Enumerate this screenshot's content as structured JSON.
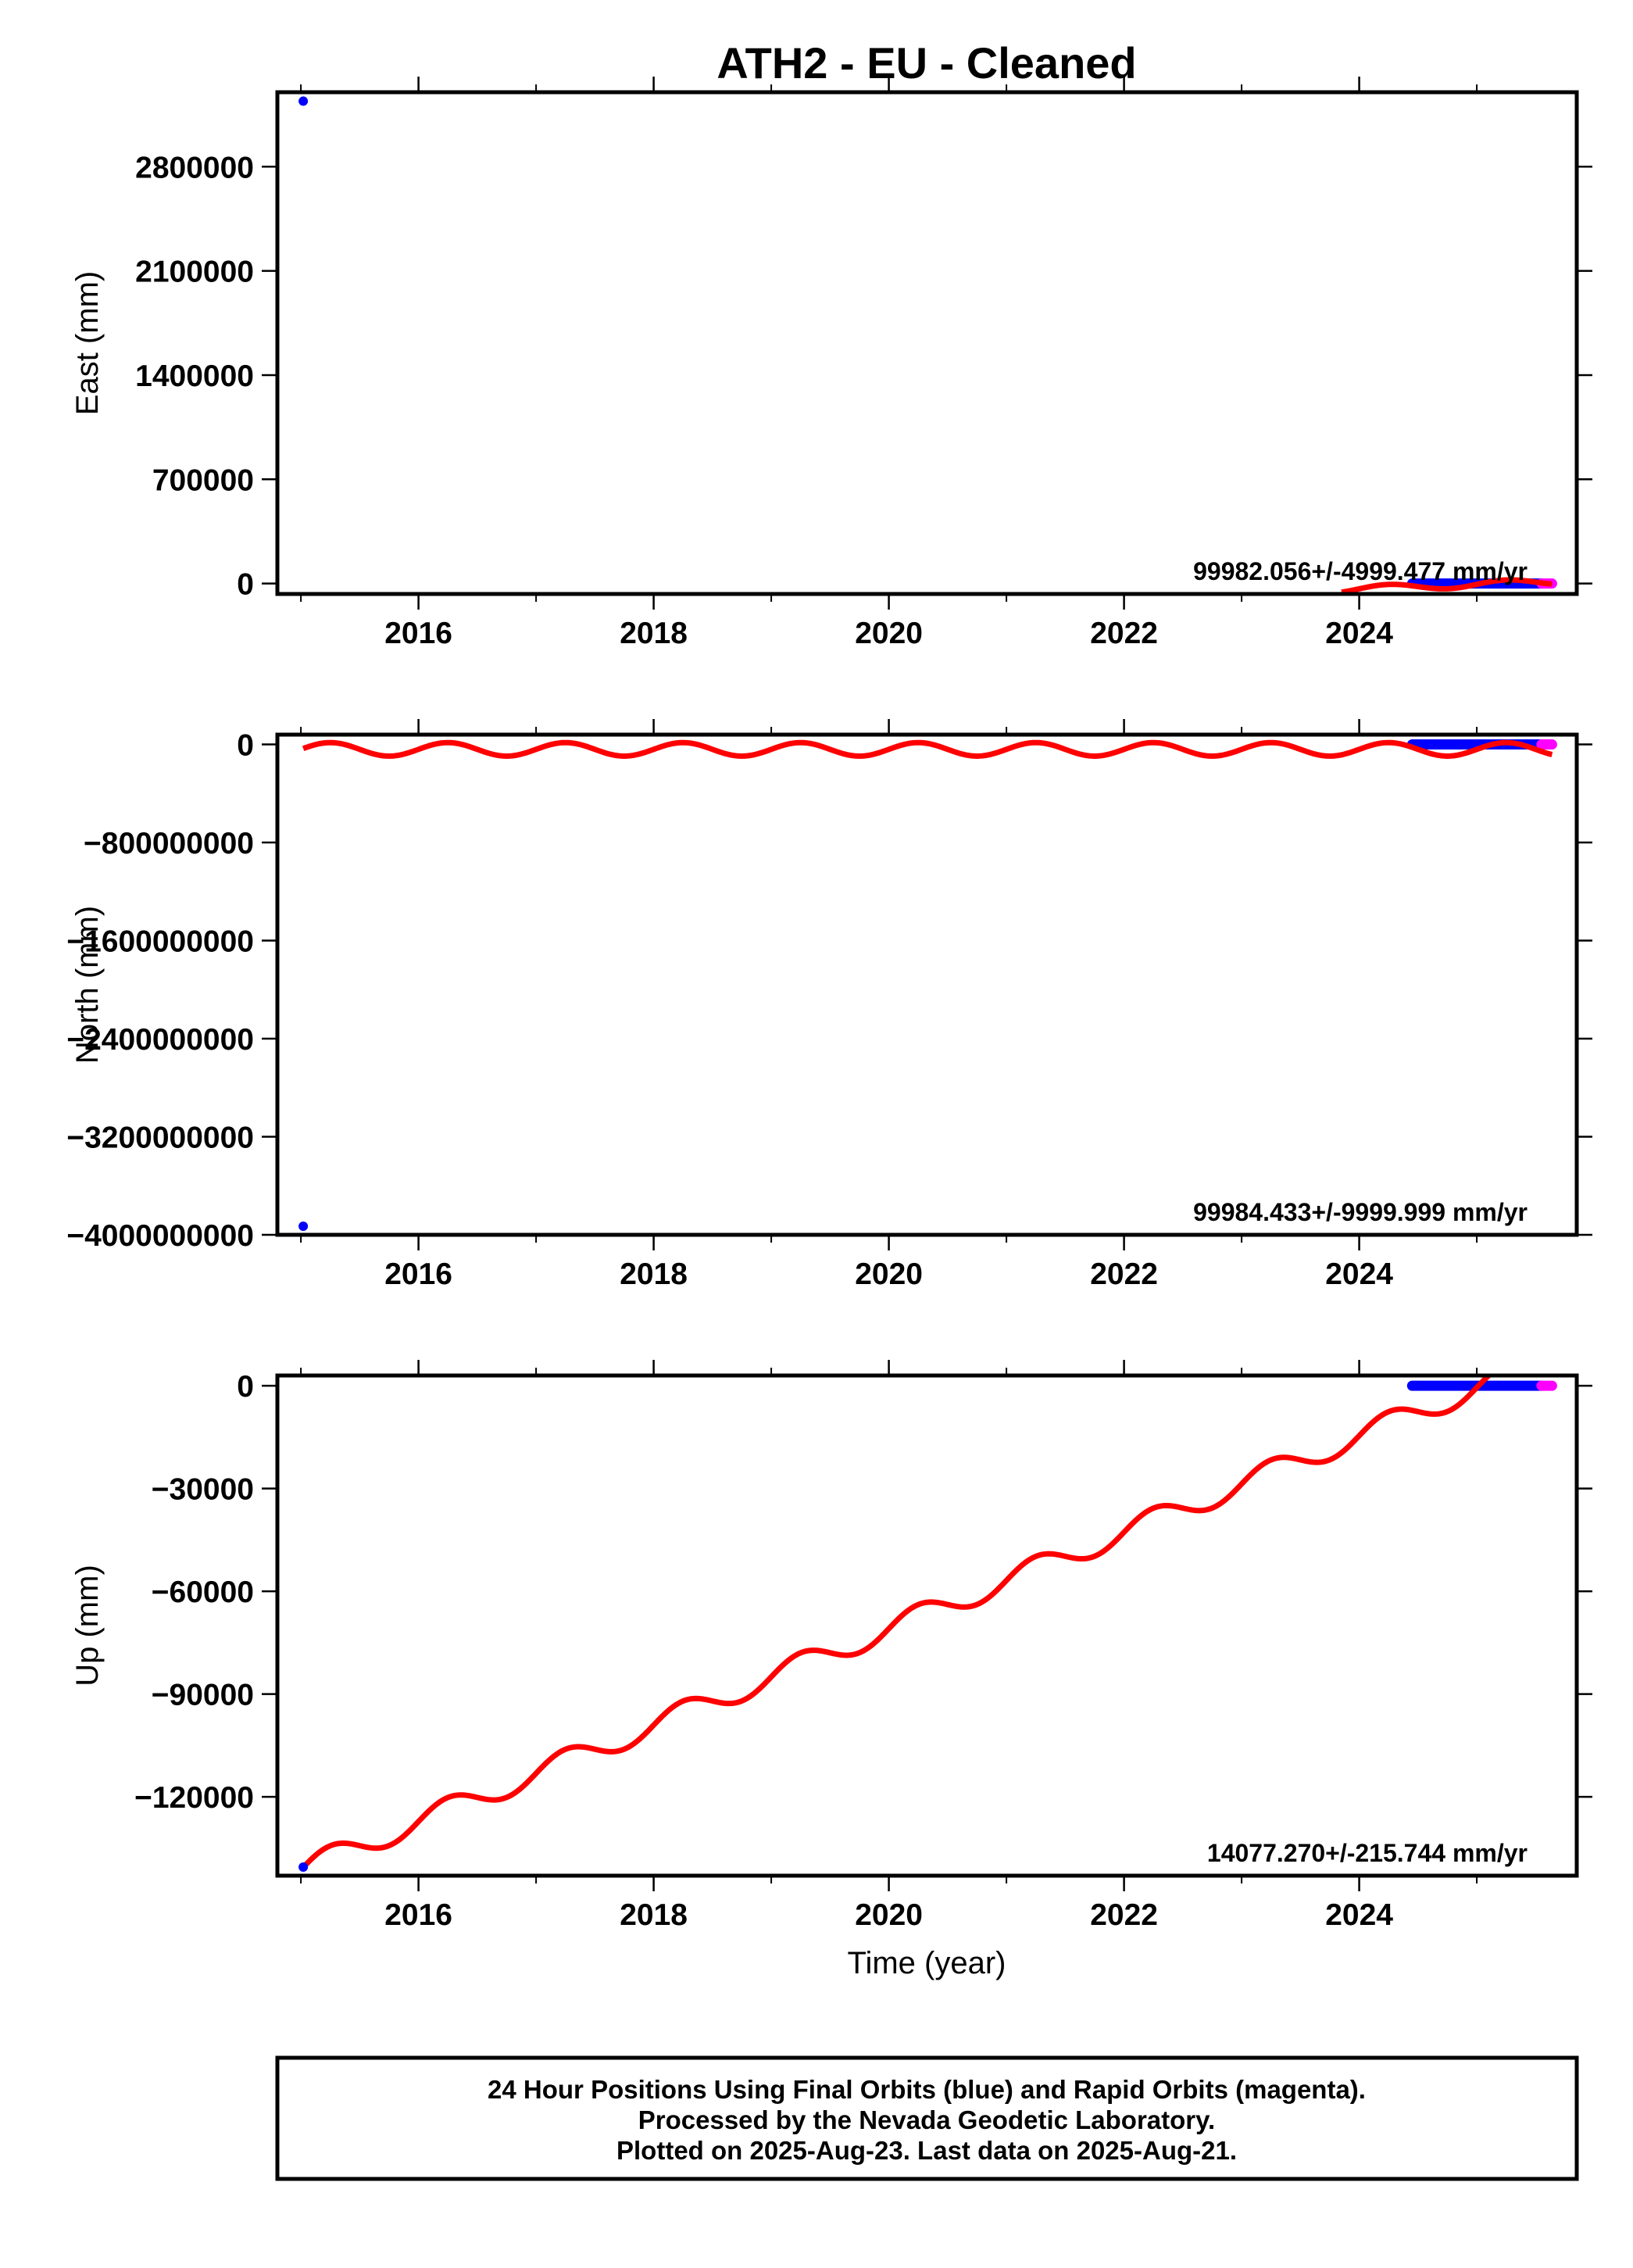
{
  "title": "ATH2  - EU - Cleaned",
  "xlabel": "Time (year)",
  "footer": {
    "line1": "24 Hour Positions Using Final Orbits (blue) and Rapid Orbits (magenta).",
    "line2": "Processed by the Nevada Geodetic Laboratory.",
    "line3": "Plotted on 2025-Aug-23. Last data on 2025-Aug-21."
  },
  "colors": {
    "final": "#0000ff",
    "rapid": "#ff00ff",
    "model": "#ff0000",
    "frame": "#000000"
  },
  "chart_data": [
    {
      "type": "scatter",
      "panel": "east",
      "ylabel": "East (mm)",
      "rate": "99982.056+/-4999.477 mm/yr",
      "xlim": [
        2014.8,
        2025.85
      ],
      "ylim": [
        -70000,
        3300000
      ],
      "xticks": [
        2016,
        2018,
        2020,
        2022,
        2024
      ],
      "yticks": [
        0,
        700000,
        1400000,
        2100000,
        2800000
      ],
      "ytick_labels": [
        "0",
        "700000",
        "1400000",
        "2100000",
        "2800000"
      ],
      "outliers": [
        {
          "x": 2015.02,
          "y": 3240000
        }
      ],
      "final_orbits": {
        "x_start": 2024.45,
        "x_end": 2025.55,
        "y": 0
      },
      "rapid_orbits": {
        "x_start": 2025.55,
        "x_end": 2025.64,
        "y": 0
      },
      "model": {
        "x_start": 2023.85,
        "x_end": 2025.64,
        "y0": -40000,
        "trend": 30000,
        "amplitude": 22000
      }
    },
    {
      "type": "scatter",
      "panel": "north",
      "ylabel": "North (mm)",
      "rate": "99984.433+/-9999.999 mm/yr",
      "xlim": [
        2014.8,
        2025.85
      ],
      "ylim": [
        -4000000000,
        80000000
      ],
      "xticks": [
        2016,
        2018,
        2020,
        2022,
        2024
      ],
      "yticks": [
        0,
        -800000000,
        -1600000000,
        -2400000000,
        -3200000000,
        -4000000000
      ],
      "ytick_labels": [
        "0",
        "−800000000",
        "−1600000000",
        "−2400000000",
        "−3200000000",
        "−4000000000"
      ],
      "outliers": [
        {
          "x": 2015.02,
          "y": -3930000000
        }
      ],
      "final_orbits": {
        "x_start": 2024.45,
        "x_end": 2025.55,
        "y": 0
      },
      "rapid_orbits": {
        "x_start": 2025.55,
        "x_end": 2025.64,
        "y": 0
      },
      "model": {
        "x_start": 2015.02,
        "x_end": 2025.64,
        "y0": -40000000,
        "trend": 0,
        "amplitude": 55000000
      }
    },
    {
      "type": "scatter",
      "panel": "up",
      "ylabel": "Up (mm)",
      "rate": "14077.270+/-215.744 mm/yr",
      "xlim": [
        2014.8,
        2025.85
      ],
      "ylim": [
        -143000,
        3000
      ],
      "xticks": [
        2016,
        2018,
        2020,
        2022,
        2024
      ],
      "yticks": [
        0,
        -30000,
        -60000,
        -90000,
        -120000
      ],
      "ytick_labels": [
        "0",
        "−30000",
        "−60000",
        "−90000",
        "−120000"
      ],
      "outliers": [
        {
          "x": 2015.02,
          "y": -140500
        }
      ],
      "final_orbits": {
        "x_start": 2024.45,
        "x_end": 2025.55,
        "y": 0
      },
      "rapid_orbits": {
        "x_start": 2025.55,
        "x_end": 2025.64,
        "y": 0
      },
      "model": {
        "x_start": 2015.02,
        "x_end": 2025.64,
        "y0": -141000,
        "trend": 14077.27,
        "amplitude": 3500
      }
    }
  ]
}
